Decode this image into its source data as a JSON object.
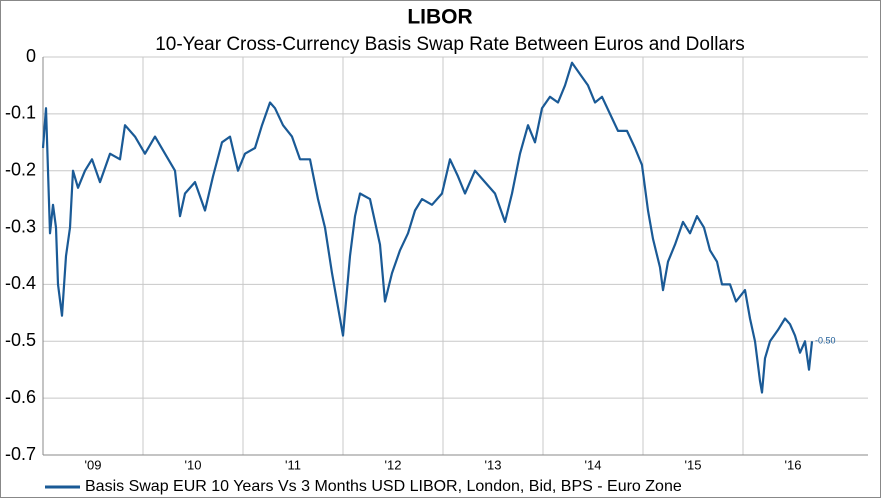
{
  "chart_data": {
    "type": "line",
    "title": "LIBOR",
    "subtitle": "10-Year Cross-Currency Basis Swap Rate Between Euros and Dollars",
    "xlim": [
      2009,
      2017.25
    ],
    "xticks": [
      {
        "value": 2009,
        "label": "'09"
      },
      {
        "value": 2010,
        "label": "'10"
      },
      {
        "value": 2011,
        "label": "'11"
      },
      {
        "value": 2012,
        "label": "'12"
      },
      {
        "value": 2013,
        "label": "'13"
      },
      {
        "value": 2014,
        "label": "'14"
      },
      {
        "value": 2015,
        "label": "'15"
      },
      {
        "value": 2016,
        "label": "'16"
      }
    ],
    "ylim": [
      -0.7,
      0
    ],
    "yticks": [
      0,
      -0.1,
      -0.2,
      -0.3,
      -0.4,
      -0.5,
      -0.6,
      -0.7
    ],
    "grid": true,
    "legend": "bottom",
    "x": [
      2009.0,
      2009.03,
      2009.07,
      2009.1,
      2009.13,
      2009.15,
      2009.19,
      2009.23,
      2009.27,
      2009.3,
      2009.35,
      2009.42,
      2009.49,
      2009.57,
      2009.67,
      2009.77,
      2009.82,
      2009.92,
      2010.02,
      2010.12,
      2010.22,
      2010.32,
      2010.37,
      2010.42,
      2010.52,
      2010.62,
      2010.7,
      2010.79,
      2010.87,
      2010.95,
      2011.02,
      2011.12,
      2011.19,
      2011.27,
      2011.32,
      2011.4,
      2011.49,
      2011.57,
      2011.67,
      2011.75,
      2011.82,
      2011.89,
      2011.95,
      2012.0,
      2012.07,
      2012.12,
      2012.17,
      2012.27,
      2012.37,
      2012.42,
      2012.49,
      2012.57,
      2012.65,
      2012.72,
      2012.79,
      2012.89,
      2012.99,
      2013.07,
      2013.15,
      2013.22,
      2013.32,
      2013.42,
      2013.52,
      2013.62,
      2013.69,
      2013.77,
      2013.85,
      2013.92,
      2013.99,
      2014.07,
      2014.15,
      2014.22,
      2014.29,
      2014.37,
      2014.45,
      2014.52,
      2014.59,
      2014.67,
      2014.75,
      2014.84,
      2014.92,
      2014.99,
      2015.05,
      2015.1,
      2015.17,
      2015.2,
      2015.25,
      2015.32,
      2015.4,
      2015.47,
      2015.54,
      2015.61,
      2015.67,
      2015.74,
      2015.79,
      2015.87,
      2015.93,
      2016.02,
      2016.07,
      2016.12,
      2016.17,
      2016.19,
      2016.22,
      2016.27,
      2016.35,
      2016.42,
      2016.47,
      2016.52,
      2016.57,
      2016.62,
      2016.66,
      2016.69
    ],
    "series": [
      {
        "name": "Basis Swap EUR 10 Years Vs 3 Months USD LIBOR, London, Bid, BPS - Euro Zone",
        "color": "#1a5a96",
        "last_value_label": "-0.50",
        "values": [
          -0.16,
          -0.09,
          -0.31,
          -0.26,
          -0.3,
          -0.4,
          -0.455,
          -0.35,
          -0.3,
          -0.2,
          -0.23,
          -0.2,
          -0.18,
          -0.22,
          -0.17,
          -0.18,
          -0.12,
          -0.14,
          -0.17,
          -0.14,
          -0.17,
          -0.2,
          -0.28,
          -0.24,
          -0.22,
          -0.27,
          -0.21,
          -0.15,
          -0.14,
          -0.2,
          -0.17,
          -0.16,
          -0.12,
          -0.08,
          -0.09,
          -0.12,
          -0.14,
          -0.18,
          -0.18,
          -0.25,
          -0.3,
          -0.38,
          -0.44,
          -0.49,
          -0.35,
          -0.28,
          -0.24,
          -0.25,
          -0.33,
          -0.43,
          -0.38,
          -0.34,
          -0.31,
          -0.27,
          -0.25,
          -0.26,
          -0.24,
          -0.18,
          -0.21,
          -0.24,
          -0.2,
          -0.22,
          -0.24,
          -0.29,
          -0.24,
          -0.17,
          -0.12,
          -0.15,
          -0.09,
          -0.07,
          -0.08,
          -0.05,
          -0.01,
          -0.03,
          -0.05,
          -0.08,
          -0.07,
          -0.1,
          -0.13,
          -0.13,
          -0.16,
          -0.19,
          -0.27,
          -0.32,
          -0.37,
          -0.41,
          -0.36,
          -0.33,
          -0.29,
          -0.31,
          -0.28,
          -0.3,
          -0.34,
          -0.36,
          -0.4,
          -0.4,
          -0.43,
          -0.41,
          -0.46,
          -0.5,
          -0.57,
          -0.59,
          -0.53,
          -0.5,
          -0.48,
          -0.46,
          -0.47,
          -0.49,
          -0.52,
          -0.5,
          -0.55,
          -0.5
        ]
      }
    ]
  }
}
